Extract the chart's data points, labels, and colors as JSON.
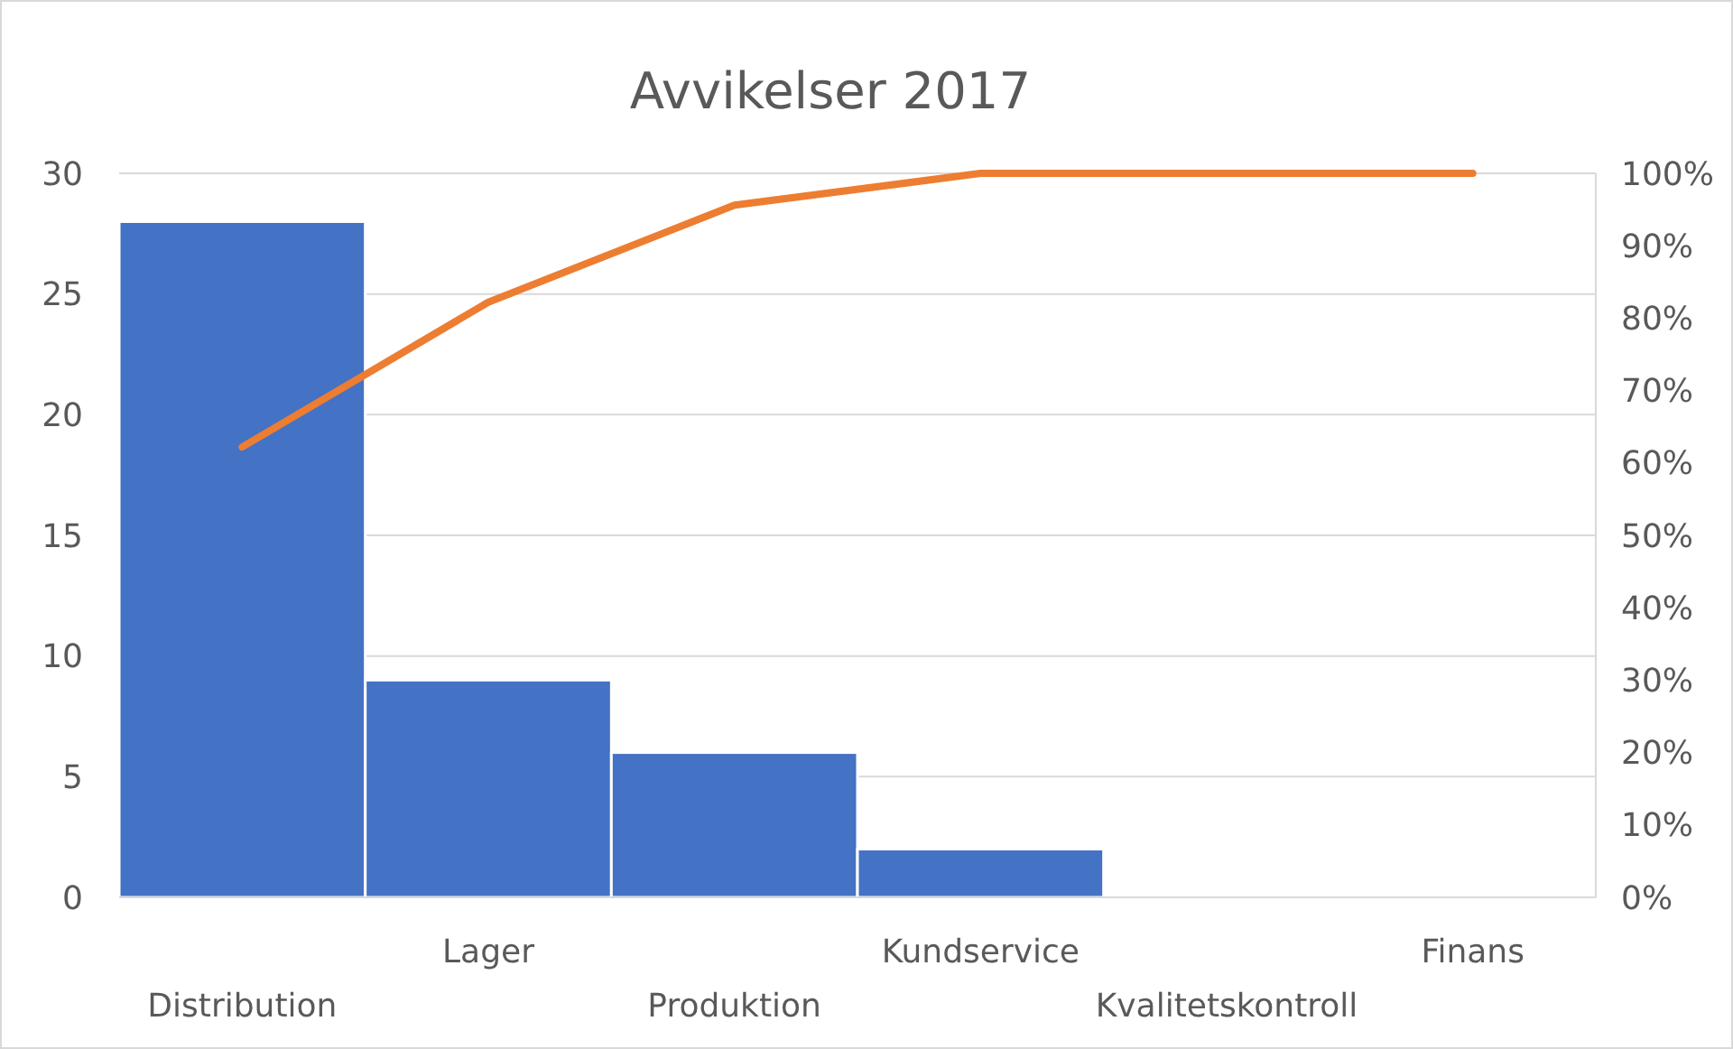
{
  "chart_data": {
    "type": "bar",
    "title": "Avvikelser 2017",
    "categories": [
      "Distribution",
      "Lager",
      "Produktion",
      "Kundservice",
      "Kvalitetskontroll",
      "Finans"
    ],
    "series": [
      {
        "color": "#4472c4",
        "values": [
          28,
          9,
          6,
          2,
          0,
          0
        ]
      },
      {
        "type": "line",
        "color": "#ed7d31",
        "axis": "y2",
        "values": [
          62.2,
          82.2,
          95.6,
          100,
          100,
          100
        ]
      }
    ],
    "ylim": [
      0,
      30
    ],
    "yticks": [
      0,
      5,
      10,
      15,
      20,
      25,
      30
    ],
    "y2lim": [
      0,
      100
    ],
    "y2ticks": [
      {
        "value": 0,
        "label": "0%"
      },
      {
        "value": 10,
        "label": "10%"
      },
      {
        "value": 20,
        "label": "20%"
      },
      {
        "value": 30,
        "label": "30%"
      },
      {
        "value": 40,
        "label": "40%"
      },
      {
        "value": 50,
        "label": "50%"
      },
      {
        "value": 60,
        "label": "60%"
      },
      {
        "value": 70,
        "label": "70%"
      },
      {
        "value": 80,
        "label": "80%"
      },
      {
        "value": 90,
        "label": "90%"
      },
      {
        "value": 100,
        "label": "100%"
      }
    ],
    "grid": "y",
    "marker": "none",
    "line_style": "solid"
  }
}
